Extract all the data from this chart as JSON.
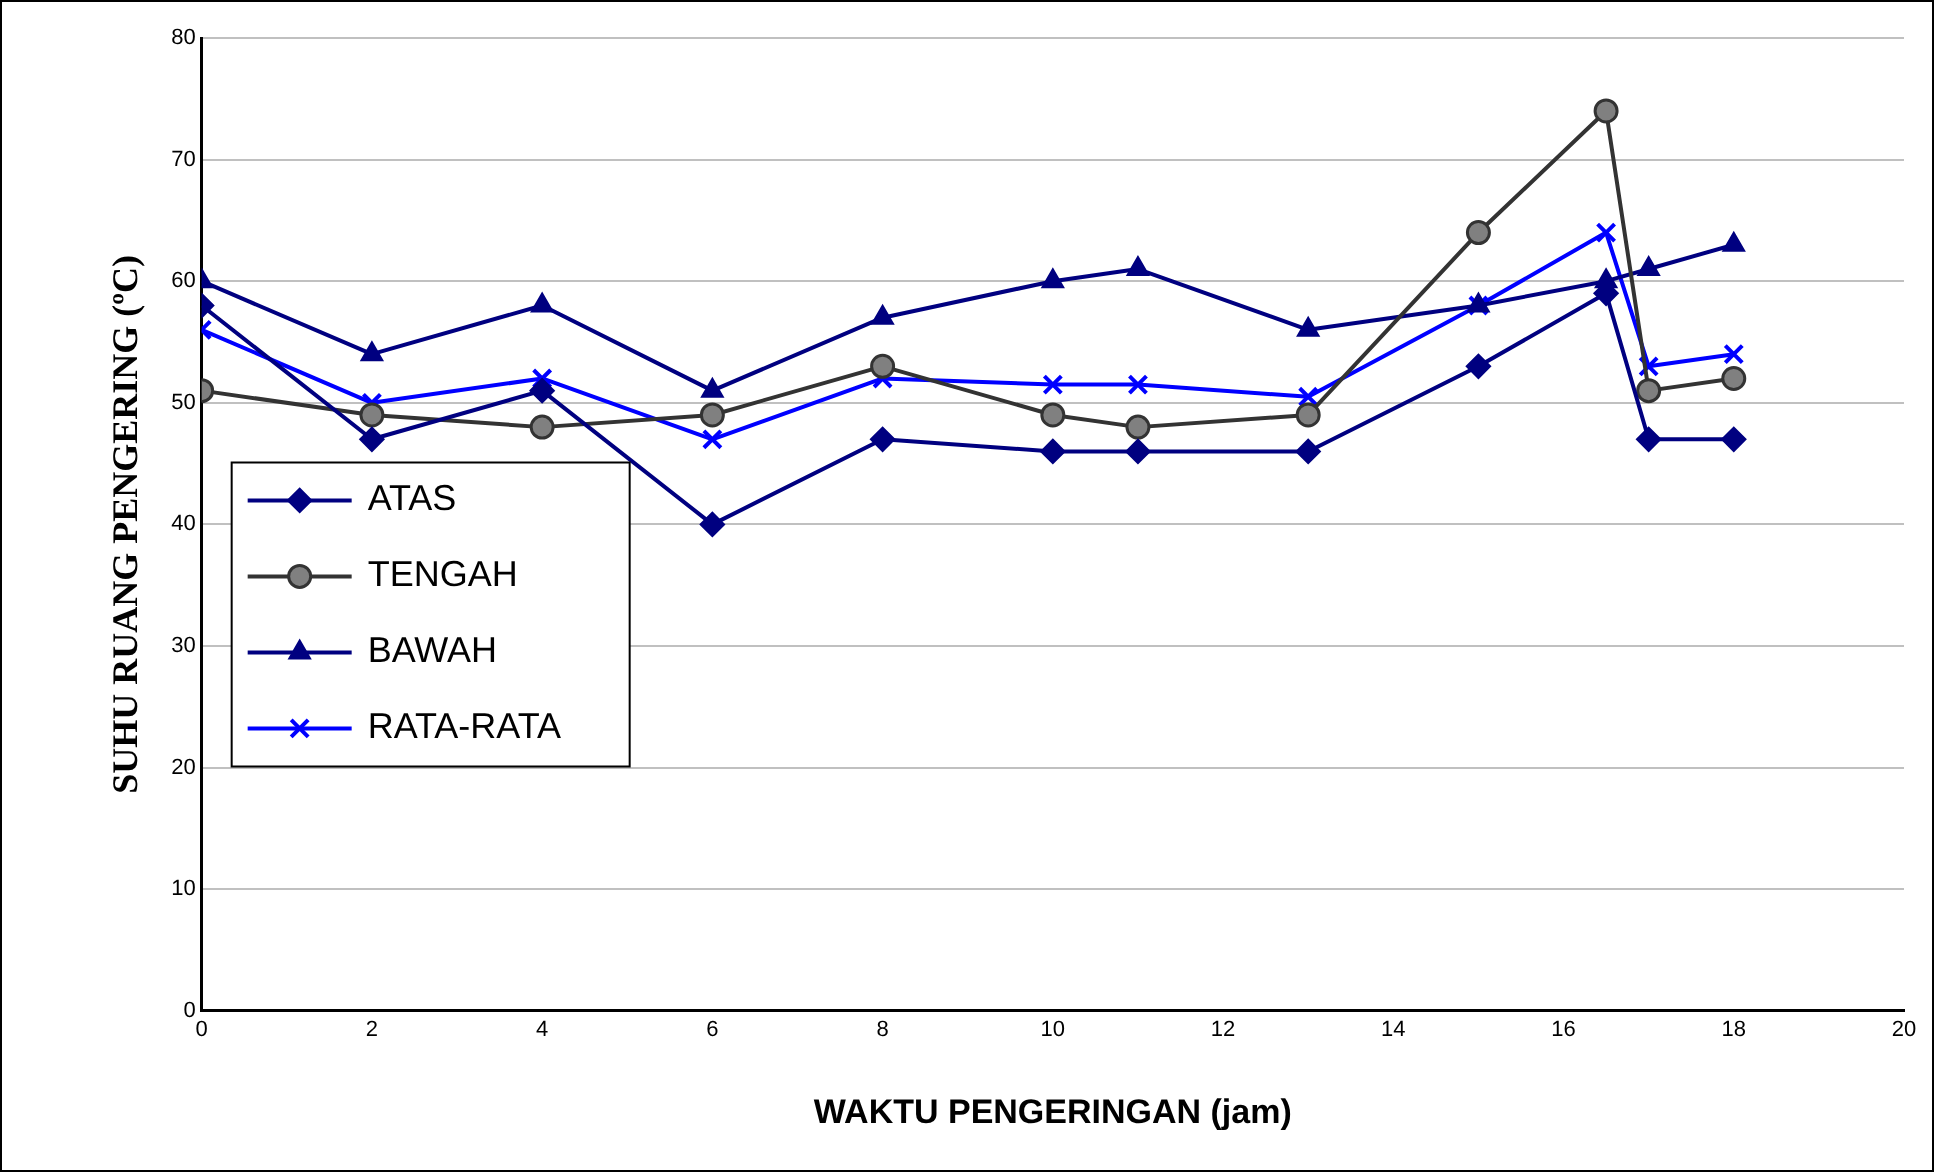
{
  "chart_data": {
    "type": "line",
    "xlabel": "WAKTU PENGERINGAN (jam)",
    "ylabel": "SUHU RUANG PENGERING (ºC)",
    "x": [
      0,
      2,
      4,
      6,
      8,
      10,
      11,
      13,
      15,
      16.5,
      17,
      18
    ],
    "xlim": [
      0,
      20
    ],
    "xticks": [
      0,
      2,
      4,
      6,
      8,
      10,
      12,
      14,
      16,
      18,
      20
    ],
    "ylim": [
      0,
      80
    ],
    "yticks": [
      0,
      10,
      20,
      30,
      40,
      50,
      60,
      70,
      80
    ],
    "grid": "y",
    "legend": "left",
    "line_style": "solid",
    "series": [
      {
        "name": "ATAS",
        "color": "#000080",
        "marker": "diamond",
        "values": [
          58,
          47,
          51,
          40,
          47,
          46,
          46,
          46,
          53,
          59,
          47,
          47
        ]
      },
      {
        "name": "TENGAH",
        "color": "#333333",
        "marker": "circle",
        "values": [
          51,
          49,
          48,
          49,
          53,
          49,
          48,
          49,
          64,
          74,
          51,
          52
        ]
      },
      {
        "name": "BAWAH",
        "color": "#000080",
        "marker": "triangle",
        "values": [
          60,
          54,
          58,
          51,
          57,
          60,
          61,
          56,
          58,
          60,
          61,
          63
        ]
      },
      {
        "name": "RATA-RATA",
        "color": "#0000ff",
        "marker": "cross",
        "values": [
          56,
          50,
          52,
          47,
          52,
          51.5,
          51.5,
          50.5,
          58,
          64,
          53,
          54
        ]
      }
    ]
  }
}
